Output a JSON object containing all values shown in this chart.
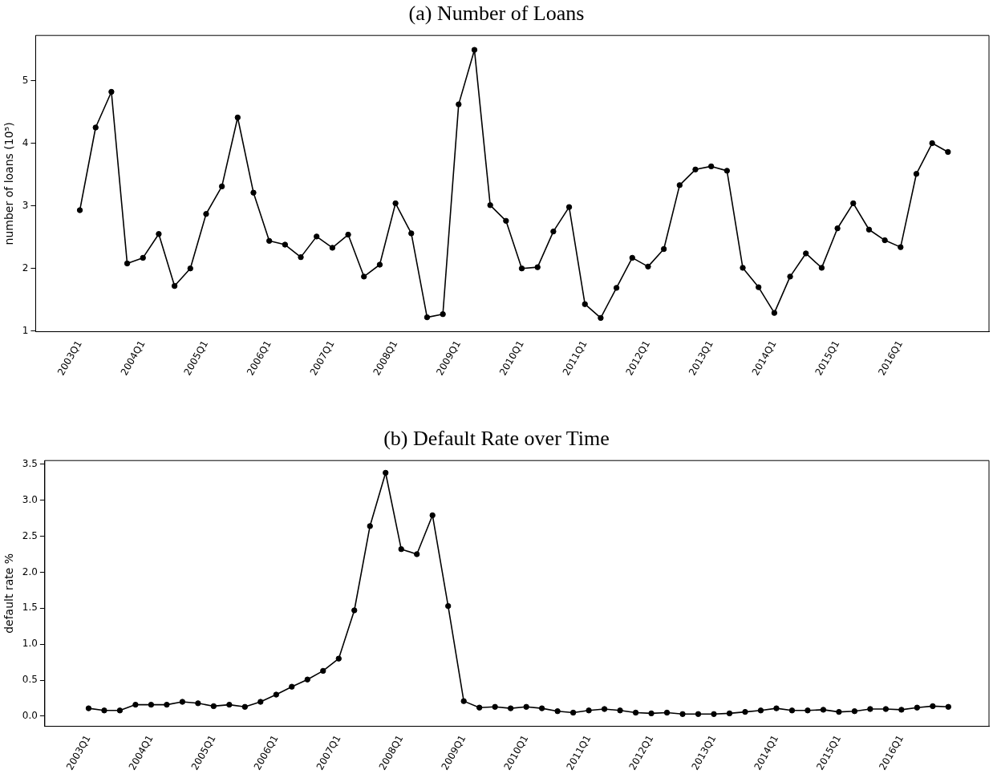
{
  "chart_data": [
    {
      "type": "line",
      "title": "(a) Number of Loans",
      "ylabel": "number of loans (10⁵)",
      "categories": [
        "2003Q1",
        null,
        null,
        null,
        "2004Q1",
        null,
        null,
        null,
        "2005Q1",
        null,
        null,
        null,
        "2006Q1",
        null,
        null,
        null,
        "2007Q1",
        null,
        null,
        null,
        "2008Q1",
        null,
        null,
        null,
        "2009Q1",
        null,
        null,
        null,
        "2010Q1",
        null,
        null,
        null,
        "2011Q1",
        null,
        null,
        null,
        "2012Q1",
        null,
        null,
        null,
        "2013Q1",
        null,
        null,
        null,
        "2014Q1",
        null,
        null,
        null,
        "2015Q1",
        null,
        null,
        null,
        "2016Q1",
        null,
        null,
        null
      ],
      "series": [
        {
          "color": "#000000",
          "values": [
            2.93,
            4.25,
            4.82,
            2.08,
            2.17,
            2.55,
            1.72,
            2.0,
            2.87,
            3.31,
            4.41,
            3.21,
            2.44,
            2.38,
            2.18,
            2.51,
            2.33,
            2.54,
            1.87,
            2.06,
            3.04,
            2.56,
            1.22,
            1.27,
            4.62,
            5.49,
            3.01,
            2.76,
            2.0,
            2.02,
            2.59,
            2.98,
            1.43,
            1.21,
            1.69,
            2.17,
            2.03,
            2.31,
            3.33,
            3.58,
            3.63,
            3.56,
            2.01,
            1.7,
            1.29,
            1.87,
            2.24,
            2.01,
            2.64,
            3.04,
            2.62,
            2.45,
            2.34,
            3.51,
            4.0,
            3.86
          ]
        }
      ],
      "ylim": [
        0.99,
        5.72
      ],
      "yticks": [
        1,
        2,
        3,
        4,
        5
      ],
      "grid": false,
      "legend": false,
      "marker": "circle",
      "line_style": "solid"
    },
    {
      "type": "line",
      "title": "(b) Default Rate over Time",
      "ylabel": "default rate %",
      "categories": [
        "2003Q1",
        null,
        null,
        null,
        "2004Q1",
        null,
        null,
        null,
        "2005Q1",
        null,
        null,
        null,
        "2006Q1",
        null,
        null,
        null,
        "2007Q1",
        null,
        null,
        null,
        "2008Q1",
        null,
        null,
        null,
        "2009Q1",
        null,
        null,
        null,
        "2010Q1",
        null,
        null,
        null,
        "2011Q1",
        null,
        null,
        null,
        "2012Q1",
        null,
        null,
        null,
        "2013Q1",
        null,
        null,
        null,
        "2014Q1",
        null,
        null,
        null,
        "2015Q1",
        null,
        null,
        null,
        "2016Q1",
        null,
        null,
        null
      ],
      "series": [
        {
          "color": "#000000",
          "values": [
            0.11,
            0.08,
            0.08,
            0.16,
            0.16,
            0.16,
            0.2,
            0.18,
            0.14,
            0.16,
            0.13,
            0.2,
            0.3,
            0.41,
            0.51,
            0.63,
            0.8,
            1.47,
            2.64,
            3.38,
            2.32,
            2.25,
            2.79,
            1.53,
            0.21,
            0.12,
            0.13,
            0.11,
            0.13,
            0.11,
            0.07,
            0.05,
            0.08,
            0.1,
            0.08,
            0.05,
            0.04,
            0.05,
            0.03,
            0.03,
            0.03,
            0.04,
            0.06,
            0.08,
            0.11,
            0.08,
            0.08,
            0.09,
            0.06,
            0.07,
            0.1,
            0.1,
            0.09,
            0.12,
            0.14,
            0.13
          ]
        }
      ],
      "ylim": [
        -0.14,
        3.55
      ],
      "yticks": [
        {
          "value": 0,
          "label": "0.0"
        },
        {
          "value": 0.5,
          "label": "0.5"
        },
        {
          "value": 1,
          "label": "1.0"
        },
        {
          "value": 1.5,
          "label": "1.5"
        },
        {
          "value": 2,
          "label": "2.0"
        },
        {
          "value": 2.5,
          "label": "2.5"
        },
        {
          "value": 3,
          "label": "3.0"
        },
        {
          "value": 3.5,
          "label": "3.5"
        }
      ],
      "grid": false,
      "legend": false,
      "marker": "circle",
      "line_style": "solid"
    }
  ]
}
